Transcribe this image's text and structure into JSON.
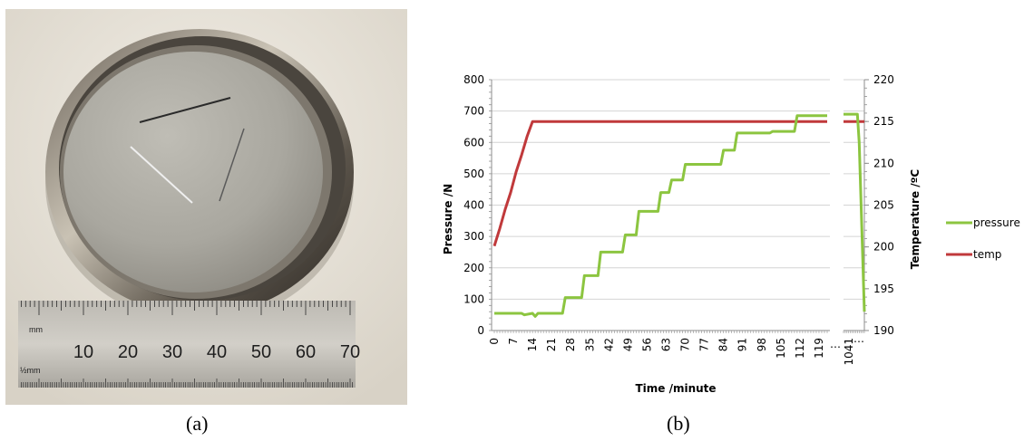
{
  "captions": {
    "a": "(a)",
    "b": "(b)"
  },
  "photo": {
    "subject": "polished sample disc in holder with three scratches, on metal ruler",
    "ruler": {
      "unit_top": "mm",
      "unit_bottom": "½mm",
      "numbers": [
        "10",
        "20",
        "30",
        "40",
        "50",
        "60",
        "70"
      ]
    }
  },
  "colors": {
    "pressure": "#8cc540",
    "temp": "#c0393b",
    "grid": "#d4d4d4",
    "axis": "#8e8e8e"
  },
  "chart_data": {
    "type": "line",
    "xlabel": "Time /minute",
    "ylabel_left": "Pressure /N",
    "ylabel_right": "Temperature /ºC",
    "ylim_left": [
      0,
      800
    ],
    "ylim_right": [
      190,
      220
    ],
    "left_ticks": [
      "0",
      "100",
      "200",
      "300",
      "400",
      "500",
      "600",
      "700",
      "800"
    ],
    "right_ticks": [
      "190",
      "195",
      "200",
      "205",
      "210",
      "215",
      "220"
    ],
    "x_tick_labels": [
      "0",
      "7",
      "14",
      "21",
      "28",
      "35",
      "42",
      "49",
      "56",
      "63",
      "70",
      "77",
      "84",
      "91",
      "98",
      "105",
      "112",
      "119"
    ],
    "break_symbol": "…",
    "x_tick_labels_right": [
      "1041"
    ],
    "legend_position": "right",
    "grid": true,
    "series": [
      {
        "name": "pressure",
        "axis": "left",
        "segment1": {
          "x": [
            0,
            10,
            11,
            14,
            15,
            16,
            25,
            26,
            32,
            33,
            38,
            39,
            47,
            48,
            52,
            53,
            60,
            61,
            64,
            65,
            69,
            70,
            74,
            75,
            83,
            84,
            88,
            89,
            101,
            102,
            110,
            111,
            122
          ],
          "y": [
            55,
            55,
            50,
            55,
            45,
            55,
            55,
            105,
            105,
            175,
            175,
            250,
            250,
            305,
            305,
            380,
            380,
            440,
            440,
            480,
            480,
            530,
            530,
            530,
            530,
            575,
            575,
            630,
            630,
            635,
            635,
            685,
            685
          ]
        },
        "segment2": {
          "x": [
            1038,
            1046,
            1047,
            1050
          ],
          "y": [
            690,
            690,
            600,
            60
          ]
        }
      },
      {
        "name": "temp",
        "axis": "right",
        "segment1": {
          "x": [
            0,
            2,
            4,
            6,
            8,
            10,
            12,
            14,
            122
          ],
          "y": [
            200.1,
            202.2,
            204.5,
            206.5,
            209.0,
            211.0,
            213.2,
            215.0,
            215.0
          ]
        },
        "segment2": {
          "x": [
            1038,
            1050
          ],
          "y": [
            215.0,
            215.0
          ]
        }
      }
    ]
  }
}
